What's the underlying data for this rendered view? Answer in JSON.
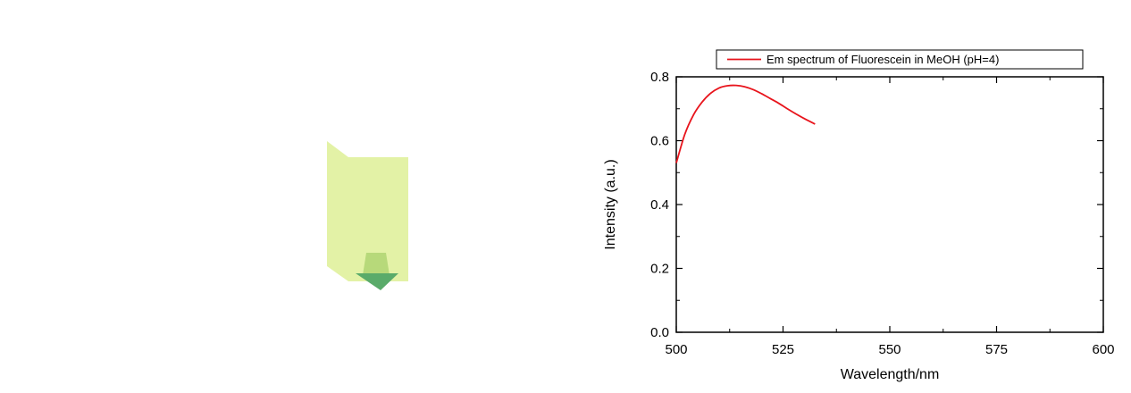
{
  "illustration": {
    "name": "fluorescent-sample-cuvette",
    "panel_color": "#e3f2a6",
    "arrow_light": "#b7d97a",
    "arrow_dark": "#5aab6a"
  },
  "chart_data": {
    "type": "line",
    "title": "",
    "xlabel": "Wavelength/nm",
    "ylabel": "Intensity (a.u.)",
    "xlim": [
      500,
      600
    ],
    "ylim": [
      0,
      0.8
    ],
    "xticks": [
      500,
      525,
      550,
      575,
      600
    ],
    "yticks": [
      0.0,
      0.2,
      0.4,
      0.6,
      0.8
    ],
    "xtick_labels": [
      "500",
      "525",
      "550",
      "575",
      "600"
    ],
    "ytick_labels": [
      "0.0",
      "0.2",
      "0.4",
      "0.6",
      "0.8"
    ],
    "grid": false,
    "legend_position": "top",
    "series": [
      {
        "name": "Em spectrum of Fluorescein in MeOH (pH=4)",
        "color": "#e8141c",
        "x": [
          500,
          502,
          504,
          506,
          508,
          510,
          512,
          514,
          516,
          518,
          520,
          522,
          524,
          526,
          528,
          530,
          532.5
        ],
        "y": [
          0.53,
          0.62,
          0.68,
          0.72,
          0.748,
          0.765,
          0.772,
          0.773,
          0.769,
          0.76,
          0.747,
          0.732,
          0.717,
          0.7,
          0.684,
          0.669,
          0.652
        ]
      }
    ]
  }
}
